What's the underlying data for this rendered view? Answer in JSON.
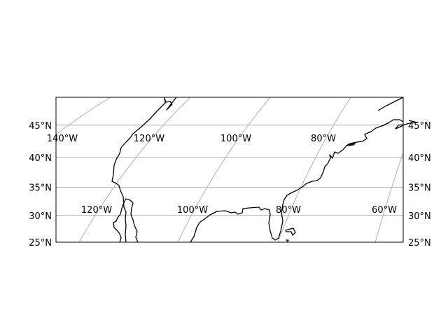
{
  "map": {
    "lat_labels": [
      {
        "value": 45,
        "text": "45°N"
      },
      {
        "value": 40,
        "text": "40°N"
      },
      {
        "value": 35,
        "text": "35°N"
      },
      {
        "value": 30,
        "text": "30°N"
      },
      {
        "value": 25,
        "text": "25°N"
      }
    ],
    "lon_labels": [
      {
        "value": -140,
        "text": "140°W"
      },
      {
        "value": -120,
        "text": "120°W"
      },
      {
        "value": -100,
        "text": "100°W"
      },
      {
        "value": -80,
        "text": "80°W"
      },
      {
        "value": -60,
        "text": "60°W"
      }
    ],
    "lat_range": [
      25,
      49
    ],
    "gridlines": true,
    "coastline_color": "#000000",
    "gridline_color": "#b0b0b0"
  }
}
